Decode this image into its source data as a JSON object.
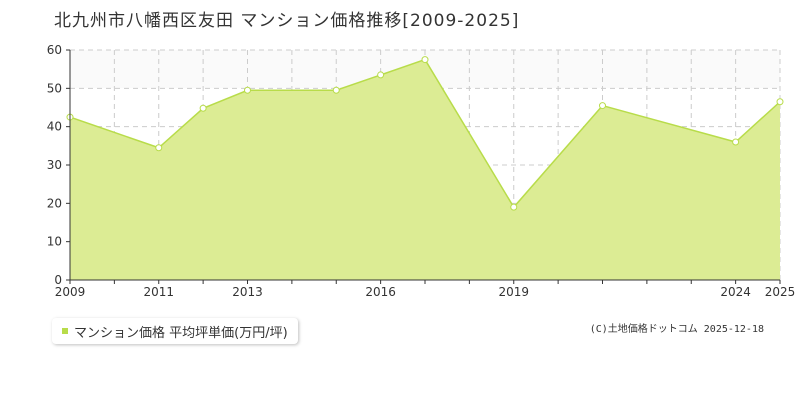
{
  "header": {
    "title": "北九州市八幡西区友田 マンション価格推移[2009-2025]"
  },
  "legend": {
    "label": "マンション価格 平均坪単価(万円/坪)"
  },
  "footer": {
    "copyright": "(C)土地価格ドットコム 2025-12-18"
  },
  "colors": {
    "fill": "#dcec94",
    "line": "#b8dc4a",
    "marker_fill": "#ffffff",
    "grid": "#cccccc",
    "legend_swatch": "#b8dc4a"
  },
  "chart_data": {
    "type": "area",
    "x": [
      2009,
      2011,
      2012,
      2013,
      2015,
      2016,
      2017,
      2019,
      2021,
      2024,
      2025
    ],
    "series": [
      {
        "name": "マンション価格 平均坪単価(万円/坪)",
        "values": [
          42.5,
          34.5,
          44.8,
          49.5,
          49.5,
          53.5,
          57.5,
          19.0,
          45.5,
          36.0,
          46.5
        ]
      }
    ],
    "xlim": [
      2009,
      2025
    ],
    "ylim": [
      0,
      60
    ],
    "xticks": [
      2009,
      2011,
      2013,
      2016,
      2019,
      2024,
      2025
    ],
    "yticks": [
      0,
      10,
      20,
      30,
      40,
      50,
      60
    ],
    "grid": true,
    "legend_position": "bottom-left"
  }
}
